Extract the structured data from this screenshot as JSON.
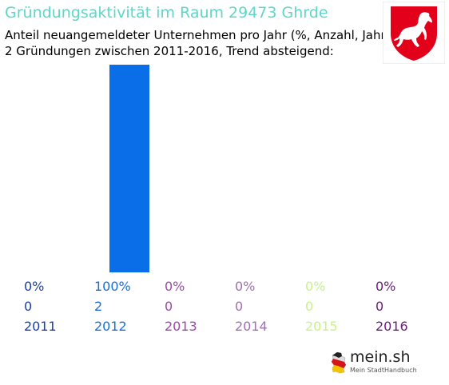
{
  "header": {
    "title": "Gründungsaktivität im Raum 29473 Ghrde",
    "subtitle_line1": "Anteil neuangemeldeter Unternehmen pro Jahr (%, Anzahl, Jahr)",
    "subtitle_line2": "2 Gründungen zwischen 2011-2016, Trend absteigend:"
  },
  "crest": {
    "icon": "lower-saxony-horse-crest-icon",
    "field_color": "#e2001a",
    "horse_color": "#ffffff"
  },
  "logo": {
    "name": "mein.sh",
    "tagline": "Mein StadtHandbuch",
    "icon": "germany-map-icon"
  },
  "chart_data": {
    "type": "bar",
    "categories": [
      "2011",
      "2012",
      "2013",
      "2014",
      "2015",
      "2016"
    ],
    "values": [
      0,
      100,
      0,
      0,
      0,
      0
    ],
    "percent_labels": [
      "0%",
      "100%",
      "0%",
      "0%",
      "0%",
      "0%"
    ],
    "count_labels": [
      "0",
      "2",
      "0",
      "0",
      "0",
      "0"
    ],
    "label_colors": [
      "#1a3faa",
      "#1a6fd6",
      "#9b4aa6",
      "#a070b0",
      "#c8f28a",
      "#6a1f7a"
    ],
    "bar_color": "#0a6ee8",
    "ylim": [
      0,
      100
    ],
    "grid": false,
    "legend": "none"
  }
}
